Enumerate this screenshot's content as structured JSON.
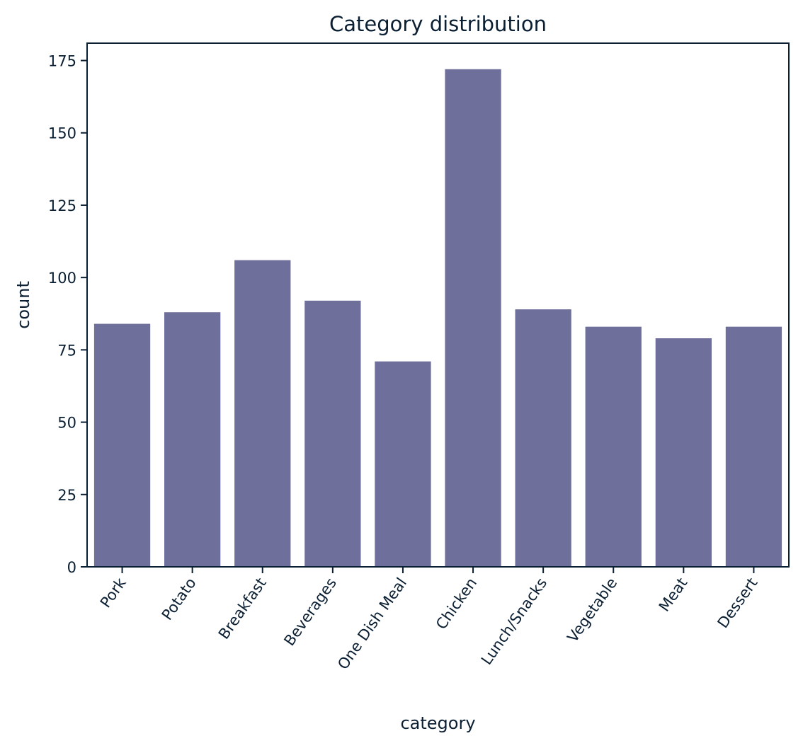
{
  "chart_data": {
    "type": "bar",
    "title": "Category distribution",
    "xlabel": "category",
    "ylabel": "count",
    "categories": [
      "Pork",
      "Potato",
      "Breakfast",
      "Beverages",
      "One Dish Meal",
      "Chicken",
      "Lunch/Snacks",
      "Vegetable",
      "Meat",
      "Dessert"
    ],
    "values": [
      84,
      88,
      106,
      92,
      71,
      172,
      89,
      83,
      79,
      83
    ],
    "ylim": [
      0,
      181
    ],
    "yticks": [
      0,
      25,
      50,
      75,
      100,
      125,
      150,
      175
    ],
    "grid": false,
    "legend": "none",
    "bar_color": "#6e6f9a",
    "axis_color": "#0b1f33",
    "text_color": "#0b1f33"
  }
}
